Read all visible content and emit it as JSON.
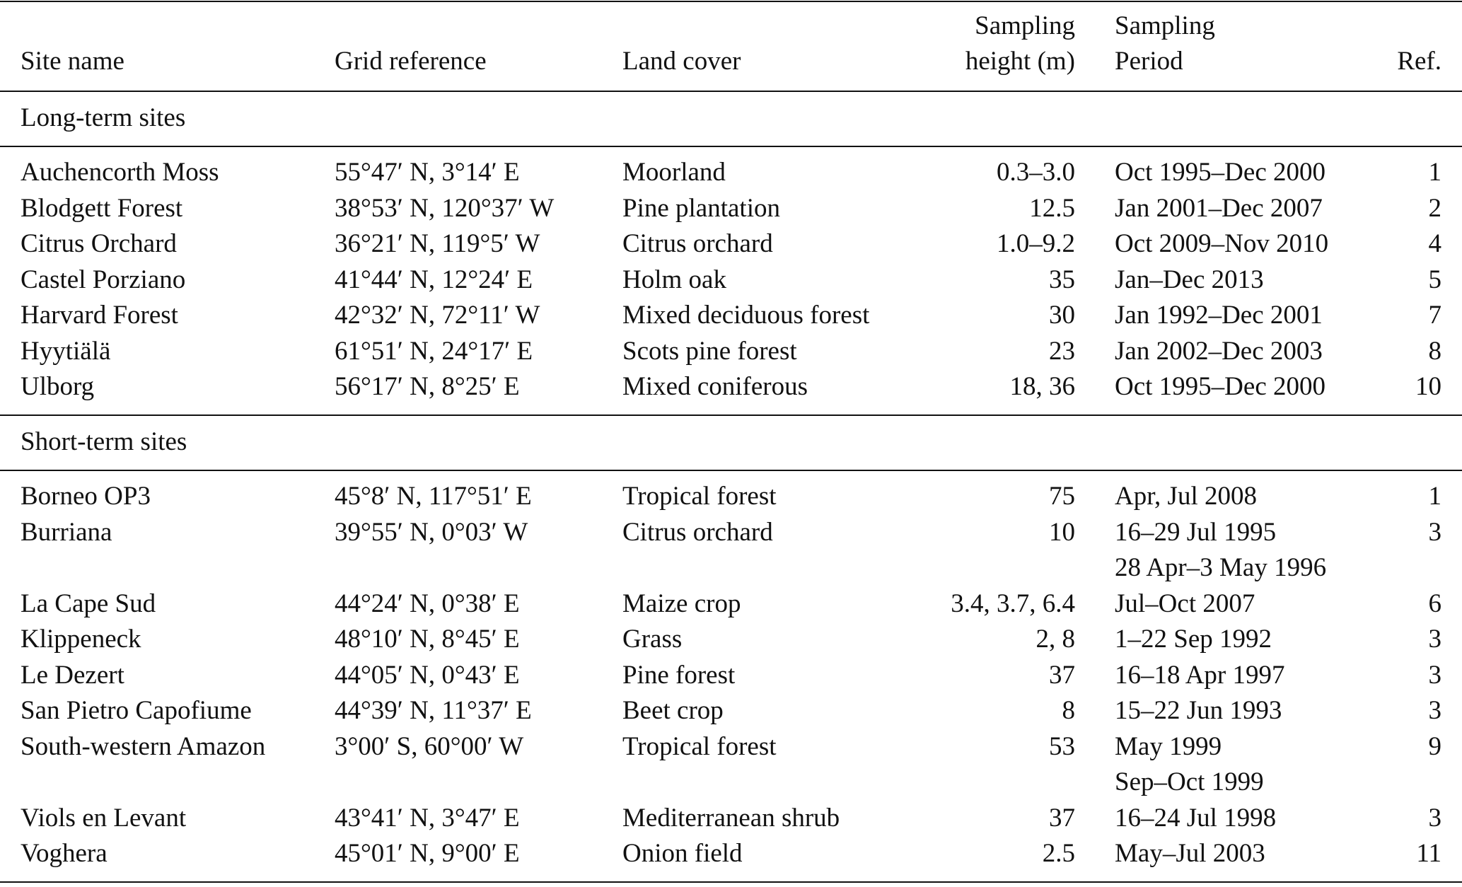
{
  "table": {
    "columns": [
      [
        "Site name"
      ],
      [
        "Grid reference"
      ],
      [
        "Land cover"
      ],
      [
        "Sampling",
        "height (m)"
      ],
      [
        "Sampling",
        "Period"
      ],
      [
        "Ref."
      ]
    ],
    "sections": [
      {
        "title": "Long-term sites",
        "rows": [
          [
            "Auchencorth Moss",
            "55°47′ N, 3°14′ E",
            "Moorland",
            "0.3–3.0",
            [
              "Oct 1995–Dec 2000"
            ],
            "1"
          ],
          [
            "Blodgett Forest",
            "38°53′ N, 120°37′ W",
            "Pine plantation",
            "12.5",
            [
              "Jan 2001–Dec 2007"
            ],
            "2"
          ],
          [
            "Citrus Orchard",
            "36°21′ N, 119°5′ W",
            "Citrus orchard",
            "1.0–9.2",
            [
              "Oct 2009–Nov 2010"
            ],
            "4"
          ],
          [
            "Castel Porziano",
            "41°44′ N, 12°24′ E",
            "Holm oak",
            "35",
            [
              "Jan–Dec 2013"
            ],
            "5"
          ],
          [
            "Harvard Forest",
            "42°32′ N, 72°11′ W",
            "Mixed deciduous forest",
            "30",
            [
              "Jan 1992–Dec 2001"
            ],
            "7"
          ],
          [
            "Hyytiälä",
            "61°51′ N, 24°17′ E",
            "Scots pine forest",
            "23",
            [
              "Jan 2002–Dec 2003"
            ],
            "8"
          ],
          [
            "Ulborg",
            "56°17′ N, 8°25′ E",
            "Mixed coniferous",
            "18, 36",
            [
              "Oct 1995–Dec 2000"
            ],
            "10"
          ]
        ]
      },
      {
        "title": "Short-term sites",
        "rows": [
          [
            "Borneo OP3",
            "45°8′ N, 117°51′ E",
            "Tropical forest",
            "75",
            [
              "Apr, Jul 2008"
            ],
            "1"
          ],
          [
            "Burriana",
            "39°55′ N, 0°03′ W",
            "Citrus orchard",
            "10",
            [
              "16–29 Jul 1995",
              "28 Apr–3 May 1996"
            ],
            "3"
          ],
          [
            "La Cape Sud",
            "44°24′ N, 0°38′ E",
            "Maize crop",
            "3.4, 3.7, 6.4",
            [
              "Jul–Oct 2007"
            ],
            "6"
          ],
          [
            "Klippeneck",
            "48°10′ N, 8°45′ E",
            "Grass",
            "2, 8",
            [
              "1–22 Sep 1992"
            ],
            "3"
          ],
          [
            "Le Dezert",
            "44°05′ N, 0°43′ E",
            "Pine forest",
            "37",
            [
              "16–18 Apr 1997"
            ],
            "3"
          ],
          [
            "San Pietro Capofiume",
            "44°39′ N, 11°37′ E",
            "Beet crop",
            "8",
            [
              "15–22 Jun 1993"
            ],
            "3"
          ],
          [
            "South-western Amazon",
            "3°00′ S, 60°00′ W",
            "Tropical forest",
            "53",
            [
              "May 1999",
              "Sep–Oct 1999"
            ],
            "9"
          ],
          [
            "Viols en Levant",
            "43°41′ N, 3°47′ E",
            "Mediterranean shrub",
            "37",
            [
              "16–24 Jul 1998"
            ],
            "3"
          ],
          [
            "Voghera",
            "45°01′ N, 9°00′ E",
            "Onion field",
            "2.5",
            [
              "May–Jul 2003"
            ],
            "11"
          ]
        ]
      }
    ]
  }
}
